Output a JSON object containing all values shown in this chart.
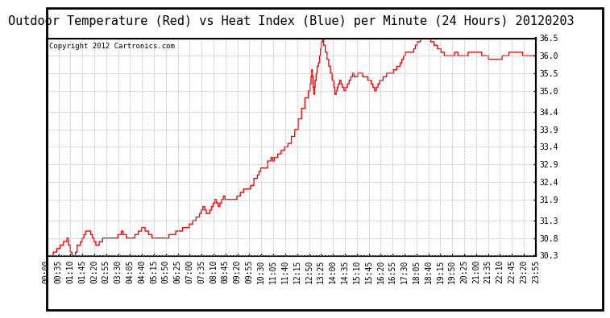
{
  "title": "Outdoor Temperature (Red) vs Heat Index (Blue) per Minute (24 Hours) 20120203",
  "copyright_text": "Copyright 2012 Cartronics.com",
  "ylim": [
    30.3,
    36.5
  ],
  "yticks": [
    30.3,
    30.8,
    31.3,
    31.9,
    32.4,
    32.9,
    33.4,
    33.9,
    34.4,
    35.0,
    35.5,
    36.0,
    36.5
  ],
  "line_color": "#ff0000",
  "bg_color": "#ffffff",
  "grid_color": "#bbbbbb",
  "title_fontsize": 11,
  "copyright_fontsize": 6.5,
  "tick_fontsize": 7,
  "xtick_labels": [
    "00:00",
    "00:35",
    "01:10",
    "01:45",
    "02:20",
    "02:55",
    "03:30",
    "04:05",
    "04:40",
    "05:15",
    "05:50",
    "06:25",
    "07:00",
    "07:35",
    "08:10",
    "08:45",
    "09:20",
    "09:55",
    "10:30",
    "11:05",
    "11:40",
    "12:15",
    "12:50",
    "13:25",
    "14:00",
    "14:35",
    "15:10",
    "15:45",
    "16:20",
    "16:55",
    "17:30",
    "18:05",
    "18:40",
    "19:15",
    "19:50",
    "20:25",
    "21:00",
    "21:35",
    "22:10",
    "22:45",
    "23:20",
    "23:55"
  ]
}
